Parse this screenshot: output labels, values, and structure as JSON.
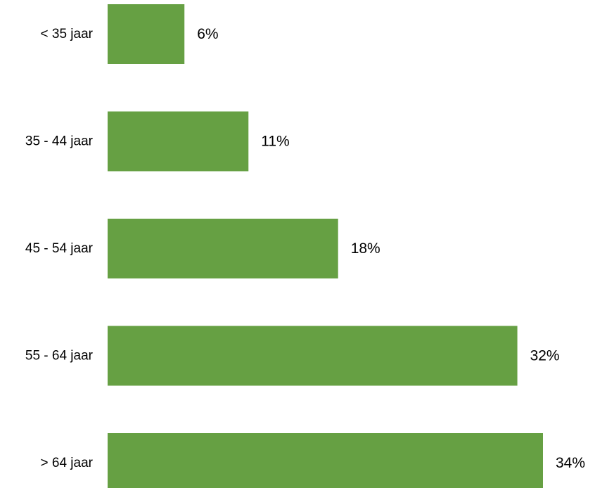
{
  "chart_data": {
    "type": "bar",
    "orientation": "horizontal",
    "categories": [
      "< 35 jaar",
      "35 - 44 jaar",
      "45 - 54 jaar",
      "55 - 64 jaar",
      "> 64 jaar"
    ],
    "values": [
      6,
      11,
      18,
      32,
      34
    ],
    "value_labels": [
      "6%",
      "11%",
      "18%",
      "32%",
      "34%"
    ],
    "unit": "%",
    "title": "",
    "xlabel": "",
    "ylabel": "",
    "xlim": [
      0,
      34
    ],
    "grid": false,
    "legend": "none",
    "colors": {
      "bar": "#66A043",
      "text": "#000000"
    }
  }
}
